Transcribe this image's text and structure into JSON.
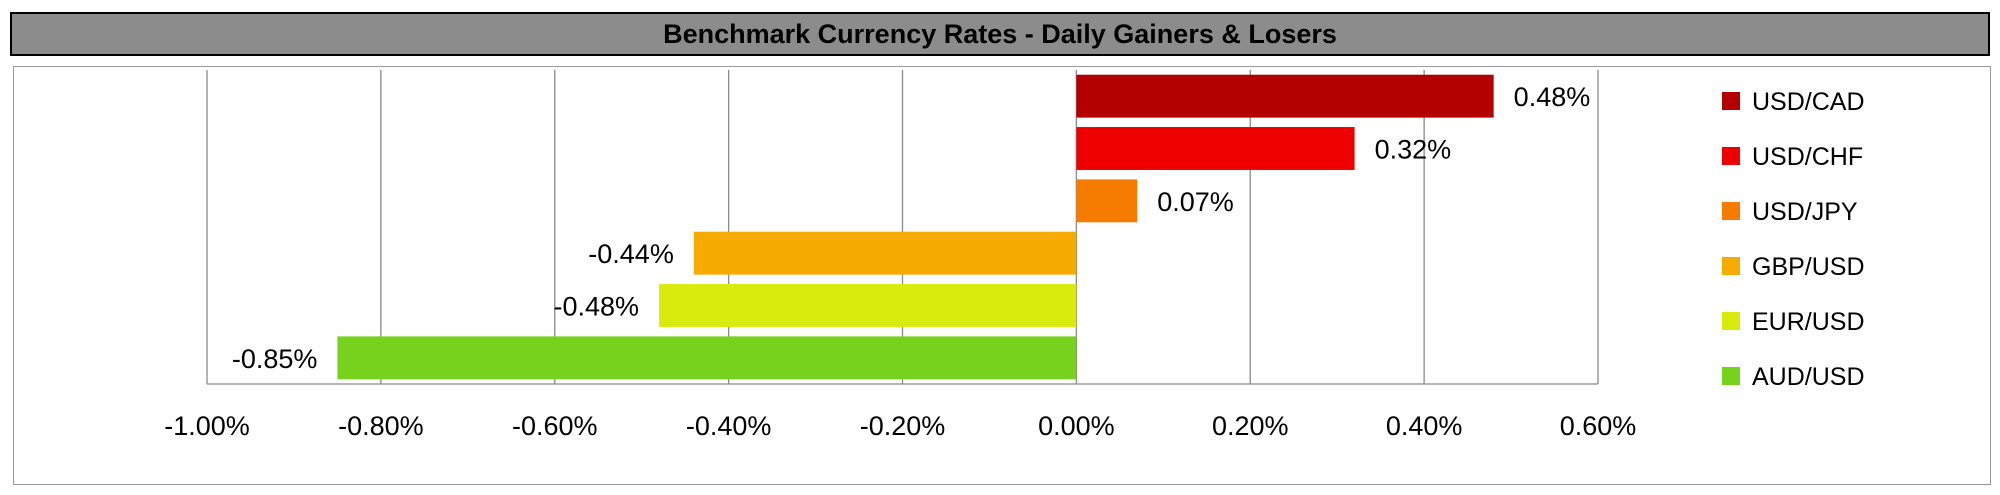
{
  "chart_data": {
    "type": "bar",
    "orientation": "horizontal",
    "title": "Benchmark Currency Rates - Daily Gainers & Losers",
    "categories": [
      "USD/CAD",
      "USD/CHF",
      "USD/JPY",
      "GBP/USD",
      "EUR/USD",
      "AUD/USD"
    ],
    "values": [
      0.48,
      0.32,
      0.07,
      -0.44,
      -0.48,
      -0.85
    ],
    "value_labels": [
      "0.48%",
      "0.32%",
      "0.07%",
      "-0.44%",
      "-0.48%",
      "-0.85%"
    ],
    "colors": [
      "#b30000",
      "#ee0000",
      "#f57c00",
      "#f6ab00",
      "#d8eb0c",
      "#76d21c"
    ],
    "xlim": [
      -1.0,
      0.6
    ],
    "xticks": [
      -1.0,
      -0.8,
      -0.6,
      -0.4,
      -0.2,
      0.0,
      0.2,
      0.4,
      0.6
    ],
    "xtick_labels": [
      "-1.00%",
      "-0.80%",
      "-0.60%",
      "-0.40%",
      "-0.20%",
      "0.00%",
      "0.20%",
      "0.40%",
      "0.60%"
    ],
    "grid": true,
    "legend_position": "right",
    "xlabel": "",
    "ylabel": ""
  }
}
